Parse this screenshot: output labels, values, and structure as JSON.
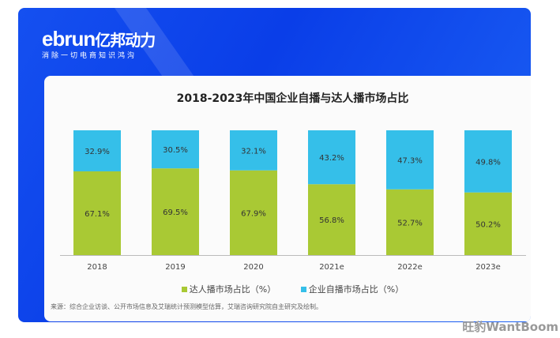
{
  "brand": {
    "name": "ebrun",
    "cn_name": "亿邦动力",
    "slogan": "消除一切电商知识鸿沟"
  },
  "watermark": "旺豹WantBoom",
  "chart_data": {
    "type": "bar",
    "stacked": true,
    "title": "2018-2023年中国企业自播与达人播市场占比",
    "categories": [
      "2018",
      "2019",
      "2020",
      "2021e",
      "2022e",
      "2023e"
    ],
    "series": [
      {
        "name": "达人播市场占比（%）",
        "color": "#a9c934",
        "values": [
          67.1,
          69.5,
          67.9,
          56.8,
          52.7,
          50.2
        ]
      },
      {
        "name": "企业自播市场占比（%）",
        "color": "#35bfe9",
        "values": [
          32.9,
          30.5,
          32.1,
          43.2,
          47.3,
          49.8
        ]
      }
    ],
    "ylim": [
      0,
      100
    ],
    "legend": "bottom-center",
    "grid": false
  },
  "source": "来源：综合企业访谈、公开市场信息及艾瑞统计预测模型估算，艾瑞咨询研究院自主研究及绘制。"
}
